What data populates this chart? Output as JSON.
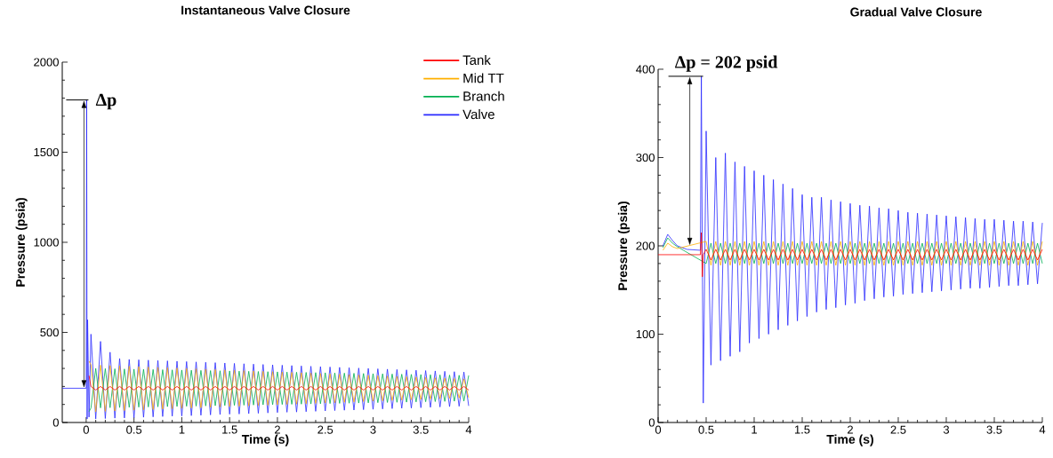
{
  "chart_data": [
    {
      "type": "line",
      "title": "Instantaneous Valve Closure",
      "xlabel": "Time (s)",
      "ylabel": "Pressure (psia)",
      "x": [
        -0.25,
        0,
        0.005,
        0.01,
        0.015,
        0.03,
        0.05,
        0.1,
        0.15,
        0.2,
        0.25,
        0.3,
        0.35,
        0.4,
        0.45,
        0.5,
        0.55,
        0.6,
        0.65,
        0.7,
        0.75,
        0.8,
        0.85,
        0.9,
        0.95,
        1,
        1.05,
        1.1,
        1.15,
        1.2,
        1.25,
        1.3,
        1.35,
        1.4,
        1.45,
        1.5,
        1.55,
        1.6,
        1.65,
        1.7,
        1.75,
        1.8,
        1.85,
        1.9,
        1.95,
        2,
        2.05,
        2.1,
        2.15,
        2.2,
        2.25,
        2.3,
        2.35,
        2.4,
        2.45,
        2.5,
        2.55,
        2.6,
        2.65,
        2.7,
        2.75,
        2.8,
        2.85,
        2.9,
        2.95,
        3,
        3.05,
        3.1,
        3.15,
        3.2,
        3.25,
        3.3,
        3.35,
        3.4,
        3.45,
        3.5,
        3.55,
        3.6,
        3.65,
        3.7,
        3.75,
        3.8,
        3.85,
        3.9,
        3.95,
        4
      ],
      "series": [
        {
          "name": "Tank",
          "color": "#ff0000",
          "values": [
            null,
            null,
            null,
            null,
            null,
            260,
            200,
            180,
            200,
            180,
            200,
            180,
            200,
            180,
            200,
            180,
            200,
            180,
            200,
            180,
            200,
            180,
            200,
            180,
            200,
            180,
            200,
            180,
            200,
            180,
            200,
            180,
            200,
            180,
            200,
            180,
            200,
            180,
            200,
            180,
            200,
            180,
            200,
            180,
            200,
            180,
            200,
            180,
            200,
            180,
            200,
            180,
            200,
            180,
            200,
            180,
            200,
            180,
            200,
            180,
            200,
            180,
            200,
            180,
            200,
            180,
            200,
            180,
            200,
            180,
            200,
            180,
            200,
            180,
            200,
            180,
            200,
            180,
            200,
            180,
            200,
            180,
            200,
            180,
            200,
            180
          ]
        },
        {
          "name": "Mid TT",
          "color": "#ffb000",
          "values": [
            null,
            null,
            null,
            null,
            null,
            340,
            320,
            60,
            318,
            62,
            316,
            64,
            314,
            66,
            312,
            68,
            310,
            70,
            308,
            72,
            306,
            74,
            304,
            76,
            302,
            78,
            300,
            80,
            298,
            82,
            296,
            84,
            294,
            86,
            292,
            88,
            290,
            90,
            288,
            92,
            286,
            94,
            284,
            96,
            282,
            98,
            280,
            100,
            278,
            102,
            276,
            104,
            274,
            106,
            272,
            108,
            270,
            110,
            268,
            112,
            266,
            114,
            264,
            116,
            262,
            118,
            260,
            120,
            258,
            122,
            256,
            124,
            254,
            126,
            252,
            128,
            250,
            130,
            248,
            132,
            246,
            134,
            244,
            136,
            242,
            138
          ]
        },
        {
          "name": "Branch",
          "color": "#00b050",
          "values": [
            null,
            null,
            null,
            null,
            null,
            60,
            80,
            300,
            81,
            299,
            82,
            298,
            83,
            297,
            84,
            296,
            85,
            295,
            86,
            294,
            87,
            293,
            88,
            292,
            89,
            291,
            90,
            290,
            91,
            289,
            92,
            288,
            93,
            287,
            94,
            286,
            95,
            285,
            96,
            284,
            97,
            283,
            98,
            282,
            99,
            281,
            100,
            280,
            101,
            279,
            102,
            278,
            103,
            277,
            104,
            276,
            105,
            275,
            106,
            274,
            107,
            273,
            108,
            272,
            109,
            271,
            110,
            270,
            111,
            269,
            112,
            268,
            113,
            267,
            114,
            266,
            115,
            265,
            116,
            264,
            117,
            263,
            118,
            262,
            119,
            261
          ]
        },
        {
          "name": "Valve",
          "color": "#2a2aff",
          "values": [
            190,
            190,
            1790,
            20,
            570,
            30,
            490,
            20,
            450,
            22,
            390,
            24,
            355,
            25,
            350,
            27,
            348,
            29,
            346,
            31,
            344,
            33,
            342,
            35,
            340,
            36,
            338,
            38,
            336,
            40,
            334,
            42,
            332,
            44,
            330,
            46,
            328,
            47,
            326,
            49,
            324,
            51,
            322,
            53,
            320,
            55,
            318,
            57,
            316,
            58,
            314,
            60,
            312,
            62,
            310,
            64,
            308,
            66,
            306,
            68,
            304,
            69,
            302,
            71,
            300,
            73,
            298,
            75,
            296,
            77,
            294,
            79,
            292,
            80,
            290,
            82,
            288,
            84,
            286,
            86,
            284,
            88,
            282,
            90,
            280,
            92
          ]
        }
      ],
      "xlim": [
        -0.25,
        4
      ],
      "ylim": [
        0,
        2000
      ],
      "xticks": [
        0,
        0.5,
        1,
        1.5,
        2,
        2.5,
        3,
        3.5,
        4
      ],
      "yticks": [
        0,
        500,
        1000,
        1500,
        2000
      ],
      "legend": "top right",
      "marker": "none",
      "line_style": "solid",
      "annotations": [
        "Δp"
      ]
    },
    {
      "type": "line",
      "title": "Gradual Valve Closure",
      "xlabel": "Time (s)",
      "ylabel": "Pressure (psia)",
      "x": [
        0,
        0.05,
        0.1,
        0.15,
        0.2,
        0.3,
        0.44,
        0.45,
        0.46,
        0.47,
        0.5,
        0.55,
        0.6,
        0.65,
        0.7,
        0.75,
        0.8,
        0.85,
        0.9,
        0.95,
        1,
        1.05,
        1.1,
        1.15,
        1.2,
        1.25,
        1.3,
        1.35,
        1.4,
        1.45,
        1.5,
        1.55,
        1.6,
        1.65,
        1.7,
        1.75,
        1.8,
        1.85,
        1.9,
        1.95,
        2,
        2.05,
        2.1,
        2.15,
        2.2,
        2.25,
        2.3,
        2.35,
        2.4,
        2.45,
        2.5,
        2.55,
        2.6,
        2.65,
        2.7,
        2.75,
        2.8,
        2.85,
        2.9,
        2.95,
        3,
        3.05,
        3.1,
        3.15,
        3.2,
        3.25,
        3.3,
        3.35,
        3.4,
        3.45,
        3.5,
        3.55,
        3.6,
        3.65,
        3.7,
        3.75,
        3.8,
        3.85,
        3.9,
        3.95,
        4
      ],
      "series": [
        {
          "color": "#ff0000",
          "values": [
            190,
            null,
            null,
            null,
            null,
            190,
            190,
            215,
            165,
            190,
            196,
            184,
            196,
            184,
            196,
            184,
            196,
            184,
            196,
            184,
            196,
            184,
            196,
            184,
            196,
            184,
            196,
            184,
            196,
            184,
            196,
            184,
            196,
            184,
            196,
            184,
            196,
            184,
            196,
            184,
            196,
            184,
            196,
            184,
            196,
            184,
            196,
            184,
            196,
            184,
            196,
            184,
            196,
            184,
            196,
            184,
            196,
            184,
            196,
            184,
            196,
            184,
            196,
            184,
            196,
            184,
            196,
            184,
            196,
            184,
            196,
            184,
            196,
            184,
            196,
            184,
            196,
            184,
            196,
            184,
            196
          ]
        },
        {
          "color": "#ffb000",
          "values": [
            null,
            195,
            203,
            199,
            197,
            null,
            null,
            null,
            null,
            null,
            205,
            178,
            205,
            178,
            205,
            178,
            205,
            178,
            205,
            178,
            205,
            178,
            205,
            178,
            205,
            178,
            205,
            178,
            205,
            178,
            205,
            178,
            205,
            178,
            205,
            178,
            205,
            178,
            205,
            178,
            205,
            178,
            205,
            178,
            205,
            178,
            205,
            178,
            205,
            178,
            205,
            178,
            205,
            178,
            205,
            178,
            205,
            178,
            205,
            178,
            205,
            178,
            205,
            178,
            205,
            178,
            205,
            178,
            205,
            178,
            205,
            178,
            205,
            178,
            205,
            178,
            205,
            178,
            205,
            178,
            205
          ]
        },
        {
          "color": "#00b050",
          "values": [
            null,
            198,
            209,
            203,
            199,
            null,
            null,
            null,
            null,
            null,
            180,
            203,
            180,
            203,
            180,
            203,
            180,
            203,
            180,
            203,
            180,
            203,
            180,
            203,
            180,
            203,
            180,
            203,
            180,
            203,
            180,
            203,
            180,
            203,
            180,
            203,
            180,
            203,
            180,
            203,
            180,
            203,
            180,
            203,
            180,
            203,
            180,
            203,
            180,
            203,
            180,
            203,
            180,
            203,
            180,
            203,
            180,
            203,
            180,
            203,
            180,
            203,
            180,
            203,
            180,
            203,
            180,
            203,
            180,
            203,
            180,
            203,
            180,
            203,
            180,
            203,
            180,
            203,
            180,
            203,
            180
          ]
        },
        {
          "color": "#2a2aff",
          "values": [
            null,
            200,
            213,
            206,
            200,
            196,
            195,
            392,
            190,
            22,
            330,
            65,
            300,
            70,
            305,
            75,
            295,
            80,
            290,
            90,
            285,
            95,
            280,
            100,
            275,
            105,
            270,
            110,
            265,
            115,
            258,
            120,
            255,
            125,
            255,
            128,
            252,
            130,
            250,
            133,
            248,
            135,
            246,
            138,
            245,
            140,
            243,
            142,
            242,
            143,
            240,
            145,
            238,
            146,
            237,
            147,
            236,
            148,
            235,
            149,
            234,
            150,
            233,
            151,
            232,
            152,
            231,
            152,
            230,
            153,
            230,
            154,
            229,
            155,
            228,
            155,
            228,
            156,
            227,
            157,
            226
          ]
        }
      ],
      "xlim": [
        0,
        4
      ],
      "ylim": [
        0,
        400
      ],
      "xticks": [
        0,
        0.5,
        1,
        1.5,
        2,
        2.5,
        3,
        3.5,
        4
      ],
      "yticks": [
        0,
        100,
        200,
        300,
        400
      ],
      "marker": "none",
      "line_style": "solid",
      "annotations": [
        "Δp = 202 psid"
      ]
    }
  ]
}
